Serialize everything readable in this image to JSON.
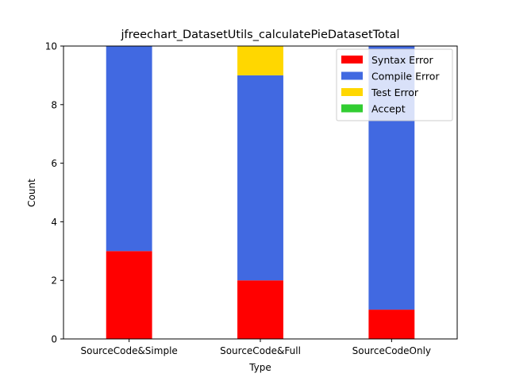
{
  "chart_data": {
    "type": "bar",
    "stacked": true,
    "title": "jfreechart_DatasetUtils_calculatePieDatasetTotal",
    "xlabel": "Type",
    "ylabel": "Count",
    "ylim": [
      0,
      10
    ],
    "yticks": [
      0,
      2,
      4,
      6,
      8,
      10
    ],
    "categories": [
      "SourceCode&Simple",
      "SourceCode&Full",
      "SourceCodeOnly"
    ],
    "series": [
      {
        "name": "Syntax Error",
        "values": [
          3,
          2,
          1
        ],
        "color": "#ff0000"
      },
      {
        "name": "Compile Error",
        "values": [
          7,
          7,
          9
        ],
        "color": "#4169e1"
      },
      {
        "name": "Test Error",
        "values": [
          0,
          1,
          0
        ],
        "color": "#ffd700"
      },
      {
        "name": "Accept",
        "values": [
          0,
          0,
          0
        ],
        "color": "#32cd32"
      }
    ],
    "legend": {
      "position": "top-right"
    },
    "grid": false
  }
}
